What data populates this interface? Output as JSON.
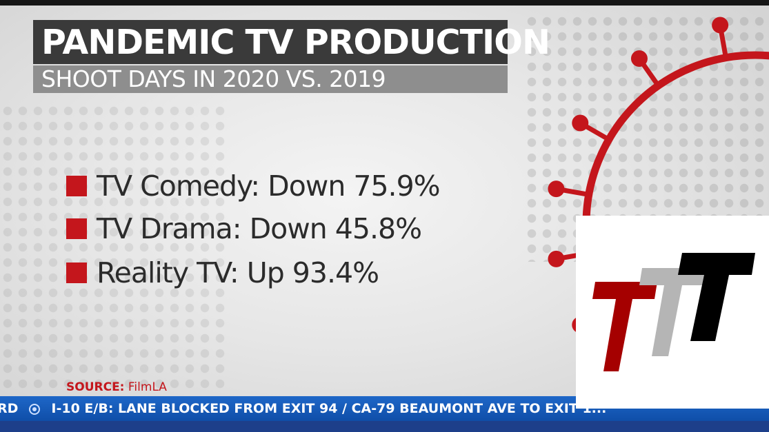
{
  "title": "PANDEMIC TV PRODUCTION",
  "subtitle": "SHOOT DAYS IN 2020 VS. 2019",
  "bullets": [
    {
      "text": "TV Comedy: Down 75.9%"
    },
    {
      "text": "TV Drama: Down 45.8%"
    },
    {
      "text": "Reality TV: Up 93.4%"
    }
  ],
  "source": {
    "label": "SOURCE:",
    "value": "FilmLA"
  },
  "ticker": {
    "lead": "RD",
    "item": "I-10 E/B: LANE BLOCKED FROM EXIT 94 / CA-79 BEAUMONT AVE TO EXIT 1..."
  },
  "colors": {
    "accent_red": "#c4161c",
    "title_bg": "#3a3a3a",
    "subtitle_bg": "#8e8e8e",
    "ticker_blue": "#1e67c8",
    "logo_red": "#a50000",
    "logo_gray": "#b5b5b5",
    "logo_black": "#000000"
  },
  "icons": {
    "decoration": "coronavirus-icon",
    "logo": "ttt-logo-icon",
    "ticker_separator": "bullet-circle-icon"
  }
}
